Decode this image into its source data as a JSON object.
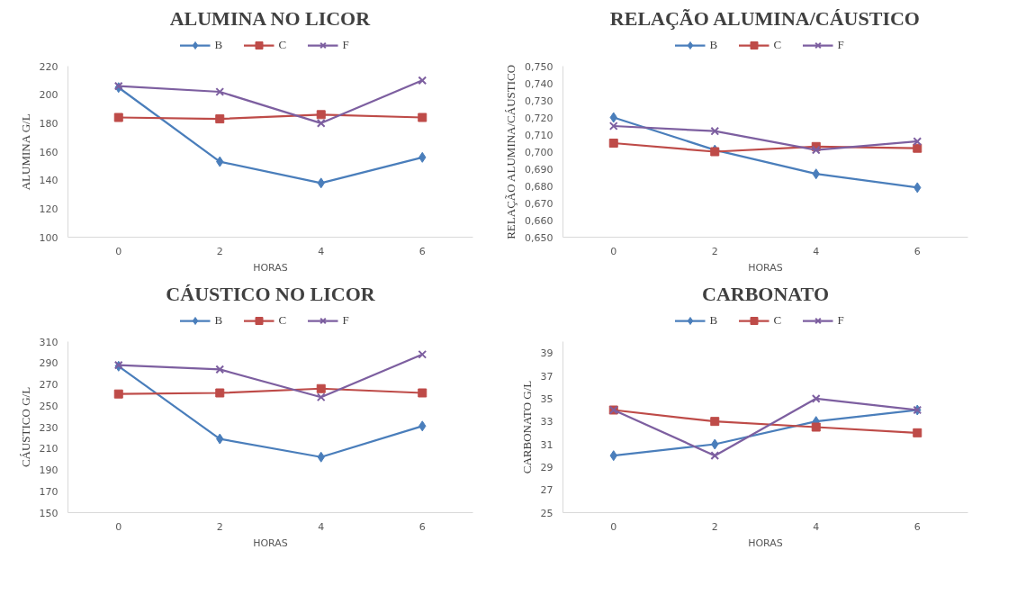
{
  "chart_data": [
    {
      "type": "line",
      "title": "ALUMINA NO LICOR",
      "xlabel": "HORAS",
      "ylabel": "ALUMINA G/L",
      "categories": [
        "0",
        "2",
        "4",
        "6"
      ],
      "ylim": [
        100,
        220
      ],
      "yticks": [
        100,
        120,
        140,
        160,
        180,
        200,
        220
      ],
      "grid": false,
      "legend": "top",
      "series": [
        {
          "name": "B",
          "color": "#4a7ebb",
          "marker": "diamond",
          "values": [
            205,
            153,
            138,
            156
          ]
        },
        {
          "name": "C",
          "color": "#be4b48",
          "marker": "square",
          "values": [
            184,
            183,
            186,
            184
          ]
        },
        {
          "name": "F",
          "color": "#7d5fa0",
          "marker": "cross",
          "values": [
            206,
            202,
            180,
            210
          ]
        }
      ]
    },
    {
      "type": "line",
      "title": "RELAÇÃO ALUMINA/CÁUSTICO",
      "xlabel": "HORAS",
      "ylabel": "RELAÇÃO ALUMINA/CÁUSTICO",
      "categories": [
        "0",
        "2",
        "4",
        "6"
      ],
      "ylim": [
        0.65,
        0.75
      ],
      "yticks": [
        {
          "value": 0.65,
          "label": "0,650"
        },
        {
          "value": 0.66,
          "label": "0,660"
        },
        {
          "value": 0.67,
          "label": "0,670"
        },
        {
          "value": 0.68,
          "label": "0,680"
        },
        {
          "value": 0.69,
          "label": "0,690"
        },
        {
          "value": 0.7,
          "label": "0,700"
        },
        {
          "value": 0.71,
          "label": "0,710"
        },
        {
          "value": 0.72,
          "label": "0,720"
        },
        {
          "value": 0.73,
          "label": "0,730"
        },
        {
          "value": 0.74,
          "label": "0,740"
        },
        {
          "value": 0.75,
          "label": "0,750"
        }
      ],
      "grid": false,
      "legend": "top",
      "series": [
        {
          "name": "B",
          "color": "#4a7ebb",
          "marker": "diamond",
          "values": [
            0.72,
            0.701,
            0.687,
            0.679
          ]
        },
        {
          "name": "C",
          "color": "#be4b48",
          "marker": "square",
          "values": [
            0.705,
            0.7,
            0.703,
            0.702
          ]
        },
        {
          "name": "F",
          "color": "#7d5fa0",
          "marker": "cross",
          "values": [
            0.715,
            0.712,
            0.701,
            0.706
          ]
        }
      ]
    },
    {
      "type": "line",
      "title": "CÁUSTICO NO LICOR",
      "xlabel": "HORAS",
      "ylabel": "CÁUSTICO G/L",
      "categories": [
        "0",
        "2",
        "4",
        "6"
      ],
      "ylim": [
        150,
        310
      ],
      "yticks": [
        150,
        170,
        190,
        210,
        230,
        250,
        270,
        290,
        310
      ],
      "grid": false,
      "legend": "top",
      "series": [
        {
          "name": "B",
          "color": "#4a7ebb",
          "marker": "diamond",
          "values": [
            287,
            219,
            202,
            231
          ]
        },
        {
          "name": "C",
          "color": "#be4b48",
          "marker": "square",
          "values": [
            261,
            262,
            266,
            262
          ]
        },
        {
          "name": "F",
          "color": "#7d5fa0",
          "marker": "cross",
          "values": [
            288,
            284,
            258,
            298
          ]
        }
      ]
    },
    {
      "type": "line",
      "title": "CARBONATO",
      "xlabel": "HORAS",
      "ylabel": "CARBONATO G/L",
      "categories": [
        "0",
        "2",
        "4",
        "6"
      ],
      "ylim": [
        25,
        40
      ],
      "yticks": [
        25,
        27,
        29,
        31,
        33,
        35,
        37,
        39
      ],
      "grid": false,
      "legend": "top",
      "series": [
        {
          "name": "B",
          "color": "#4a7ebb",
          "marker": "diamond",
          "values": [
            30,
            31,
            33,
            34
          ]
        },
        {
          "name": "C",
          "color": "#be4b48",
          "marker": "square",
          "values": [
            34,
            33,
            32.5,
            32
          ]
        },
        {
          "name": "F",
          "color": "#7d5fa0",
          "marker": "cross",
          "values": [
            34,
            30,
            35,
            34
          ]
        }
      ]
    }
  ]
}
